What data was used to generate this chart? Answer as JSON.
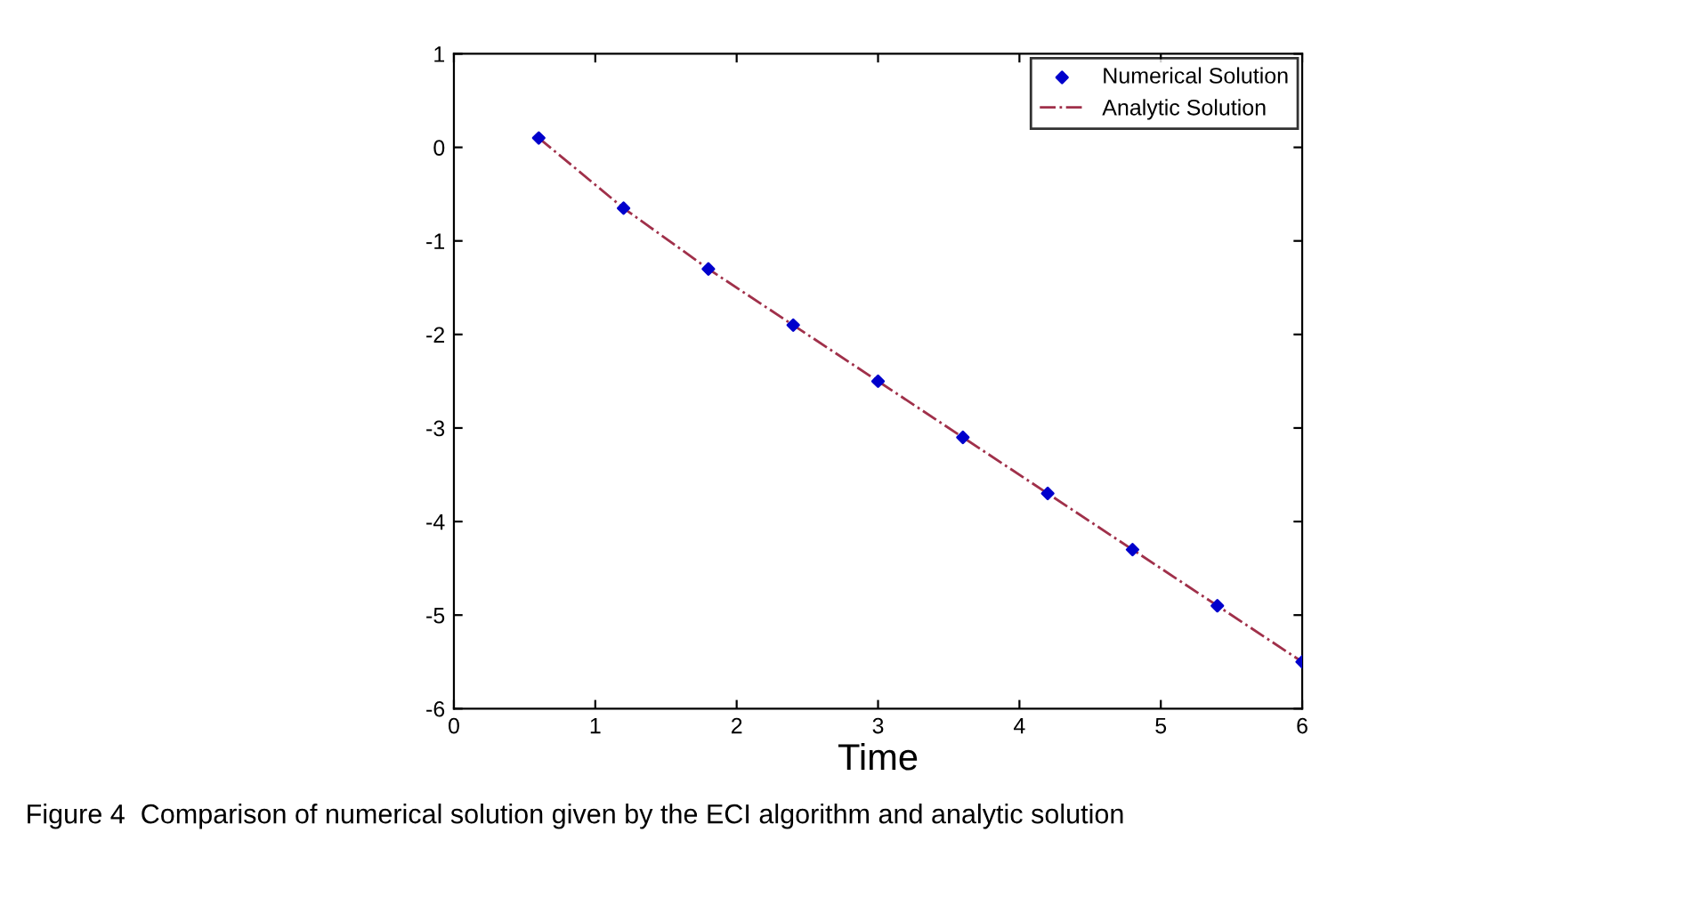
{
  "chart_data": {
    "type": "scatter",
    "xlabel": "Time",
    "x": [
      0.6,
      1.2,
      1.8,
      2.4,
      3.0,
      3.6,
      4.2,
      4.8,
      5.4,
      6.0
    ],
    "series": [
      {
        "name": "Numerical Solution",
        "color": "#0000cc",
        "marker": "diamond",
        "values": [
          0.1,
          -0.65,
          -1.3,
          -1.9,
          -2.5,
          -3.1,
          -3.7,
          -4.3,
          -4.9,
          -5.5
        ]
      },
      {
        "name": "Analytic Solution",
        "type": "line",
        "color": "#a0304a",
        "marker": "none",
        "line_style": "dashdot",
        "values": [
          0.1,
          -0.65,
          -1.3,
          -1.9,
          -2.5,
          -3.1,
          -3.7,
          -4.3,
          -4.9,
          -5.5
        ]
      }
    ],
    "xlim": [
      0,
      6
    ],
    "ylim": [
      -6,
      1
    ],
    "xticks": [
      0,
      1,
      2,
      3,
      4,
      5,
      6
    ],
    "yticks": [
      -6,
      -5,
      -4,
      -3,
      -2,
      -1,
      0,
      1
    ],
    "grid": false,
    "legend": "top right",
    "annotations": [
      "Figure 4  Comparison of numerical solution given by the ECI algorithm and analytic solution"
    ]
  }
}
